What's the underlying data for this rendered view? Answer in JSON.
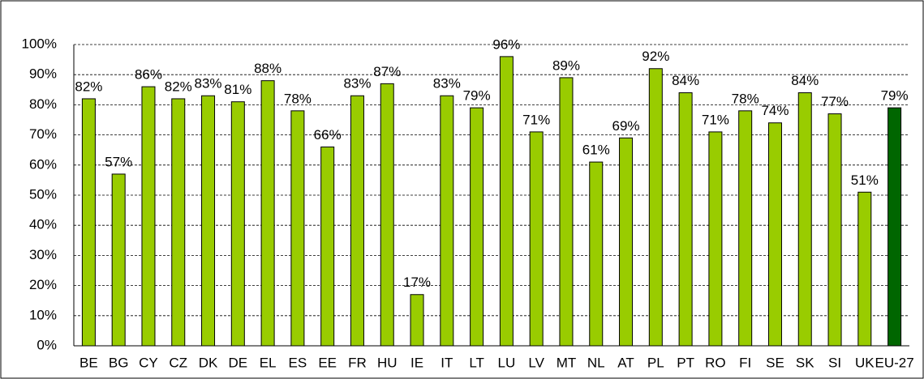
{
  "chart_data": {
    "type": "bar",
    "categories": [
      "BE",
      "BG",
      "CY",
      "CZ",
      "DK",
      "DE",
      "EL",
      "ES",
      "EE",
      "FR",
      "HU",
      "IE",
      "IT",
      "LT",
      "LU",
      "LV",
      "MT",
      "NL",
      "AT",
      "PL",
      "PT",
      "RO",
      "FI",
      "SE",
      "SK",
      "SI",
      "UK",
      "EU-27"
    ],
    "values": [
      82,
      57,
      86,
      82,
      83,
      81,
      88,
      78,
      66,
      83,
      87,
      17,
      83,
      79,
      96,
      71,
      89,
      61,
      69,
      92,
      84,
      71,
      78,
      74,
      84,
      77,
      51,
      79
    ],
    "value_labels": [
      "82%",
      "57%",
      "86%",
      "82%",
      "83%",
      "81%",
      "88%",
      "78%",
      "66%",
      "83%",
      "87%",
      "17%",
      "83%",
      "79%",
      "96%",
      "71%",
      "89%",
      "61%",
      "69%",
      "92%",
      "84%",
      "71%",
      "78%",
      "74%",
      "84%",
      "77%",
      "51%",
      "79%"
    ],
    "colors": [
      "#99cc00",
      "#99cc00",
      "#99cc00",
      "#99cc00",
      "#99cc00",
      "#99cc00",
      "#99cc00",
      "#99cc00",
      "#99cc00",
      "#99cc00",
      "#99cc00",
      "#99cc00",
      "#99cc00",
      "#99cc00",
      "#99cc00",
      "#99cc00",
      "#99cc00",
      "#99cc00",
      "#99cc00",
      "#99cc00",
      "#99cc00",
      "#99cc00",
      "#99cc00",
      "#99cc00",
      "#99cc00",
      "#99cc00",
      "#99cc00",
      "#006600"
    ],
    "ylim": [
      0,
      100
    ],
    "yticks": [
      {
        "value": 0,
        "label": "0%"
      },
      {
        "value": 10,
        "label": "10%"
      },
      {
        "value": 20,
        "label": "20%"
      },
      {
        "value": 30,
        "label": "30%"
      },
      {
        "value": 40,
        "label": "40%"
      },
      {
        "value": 50,
        "label": "50%"
      },
      {
        "value": 60,
        "label": "60%"
      },
      {
        "value": 70,
        "label": "70%"
      },
      {
        "value": 80,
        "label": "80%"
      },
      {
        "value": 90,
        "label": "90%"
      },
      {
        "value": 100,
        "label": "100%"
      }
    ],
    "grid": true
  }
}
